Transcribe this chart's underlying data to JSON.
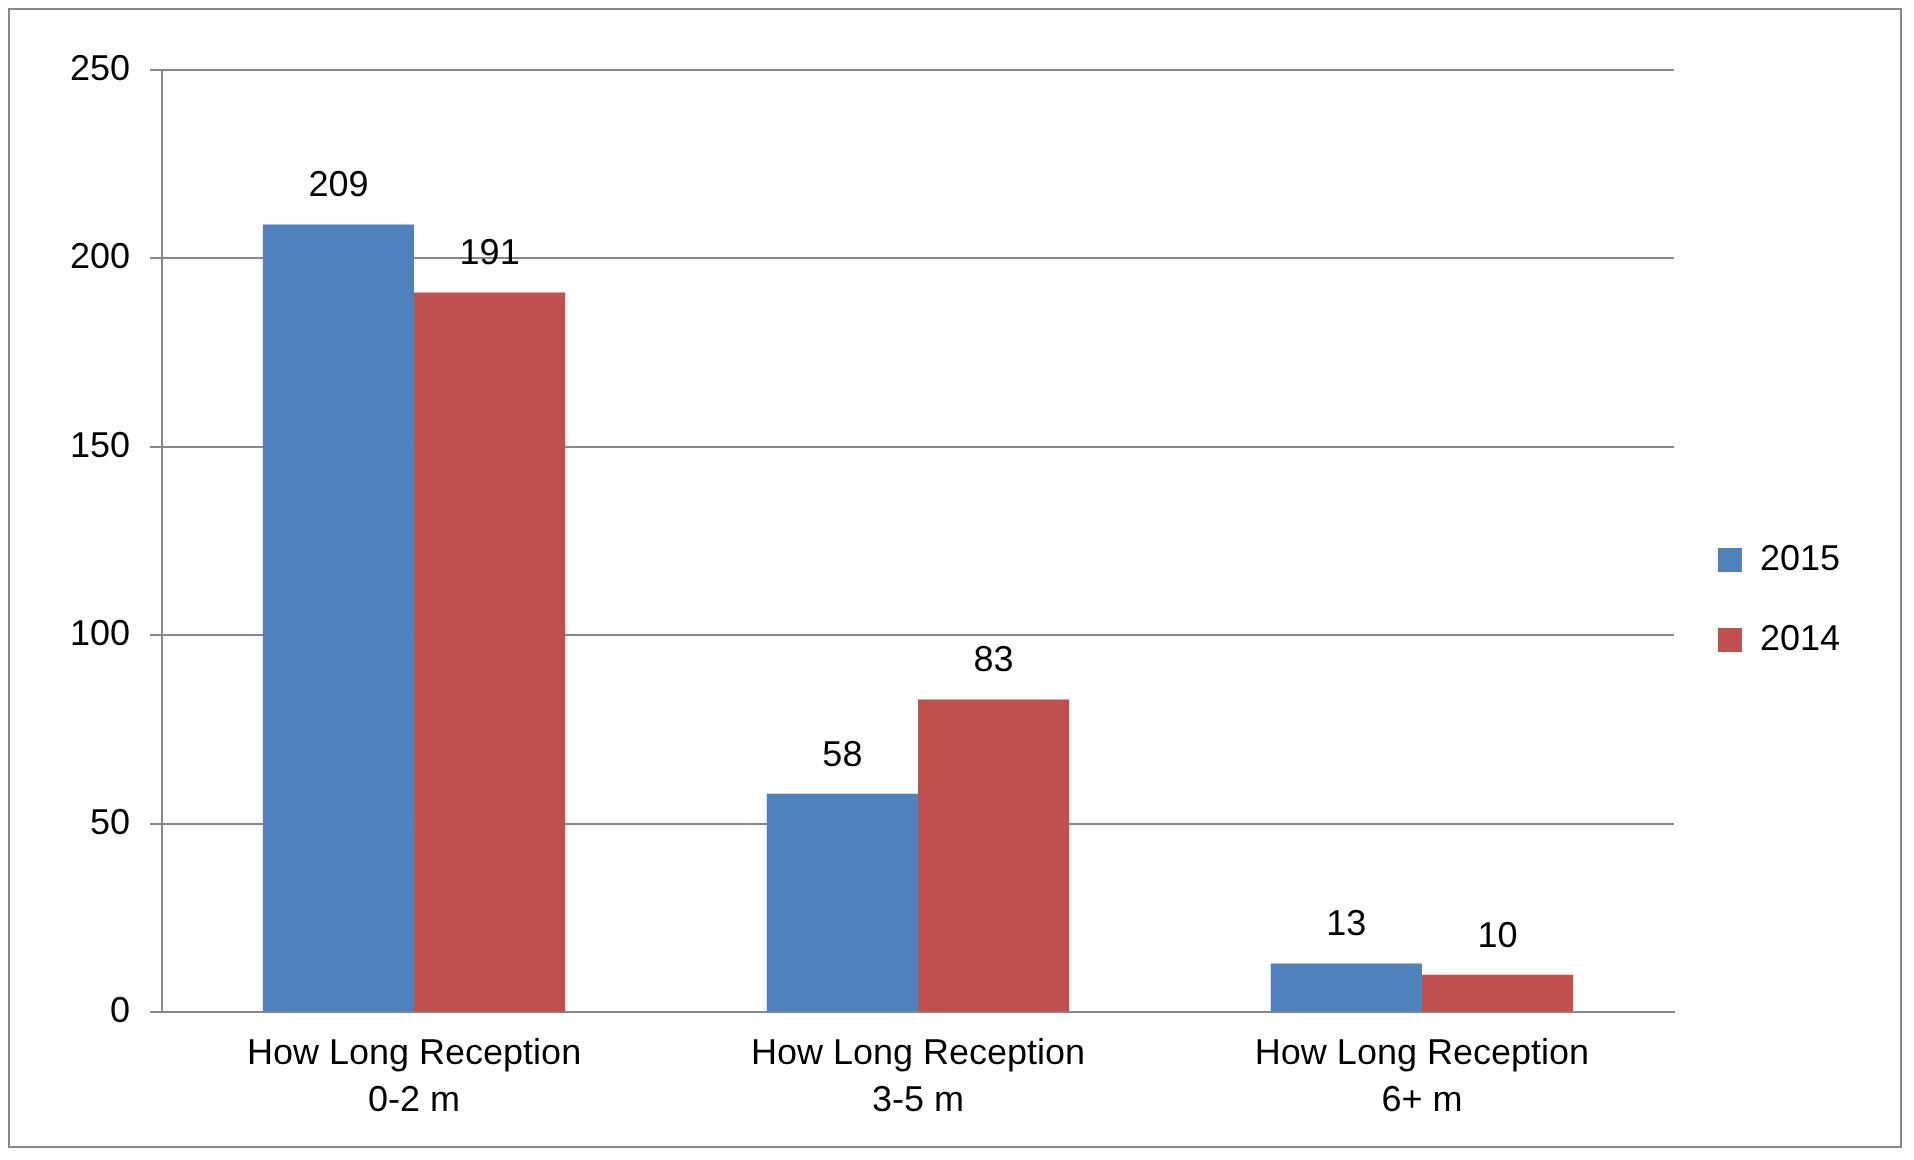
{
  "chart_data": {
    "type": "bar",
    "categories": [
      "How Long Reception 0-2 m",
      "How Long Reception 3-5 m",
      "How Long Reception 6+ m"
    ],
    "series": [
      {
        "name": "2015",
        "color": "#4f81bd",
        "values": [
          209,
          58,
          13
        ]
      },
      {
        "name": "2014",
        "color": "#c0504d",
        "values": [
          191,
          83,
          10
        ]
      }
    ],
    "ylim": [
      0,
      250
    ],
    "yticks": [
      0,
      50,
      100,
      150,
      200,
      250
    ],
    "grid": "y",
    "legend": "right",
    "data_labels": true
  }
}
